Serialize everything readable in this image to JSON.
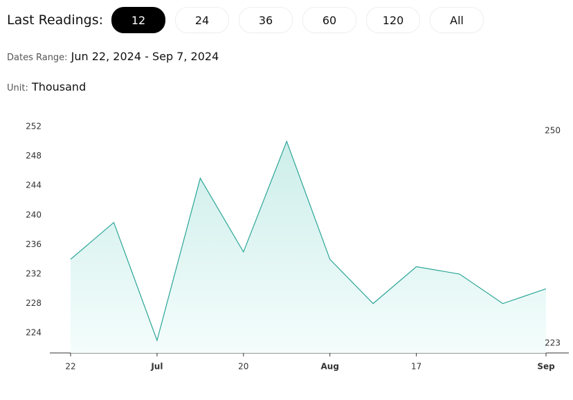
{
  "header": {
    "label": "Last Readings:",
    "buttons": [
      "12",
      "24",
      "36",
      "60",
      "120",
      "All"
    ],
    "selected": 0
  },
  "dates": {
    "label": "Dates Range:",
    "value": "Jun 22, 2024 - Sep 7, 2024"
  },
  "unit": {
    "label": "Unit:",
    "value": "Thousand"
  },
  "chart_data": {
    "type": "area",
    "categories": [
      "22",
      null,
      "Jul",
      null,
      "20",
      null,
      "Aug",
      null,
      "17",
      null,
      null,
      "Sep"
    ],
    "values": [
      234,
      239,
      223,
      245,
      235,
      250,
      234,
      228,
      233,
      232,
      228,
      230
    ],
    "color": "#2aa596",
    "ylim": [
      221.3,
      253.5
    ],
    "yticks": [
      224,
      228,
      232,
      236,
      240,
      244,
      248,
      252
    ],
    "high": 250,
    "low": 223
  }
}
